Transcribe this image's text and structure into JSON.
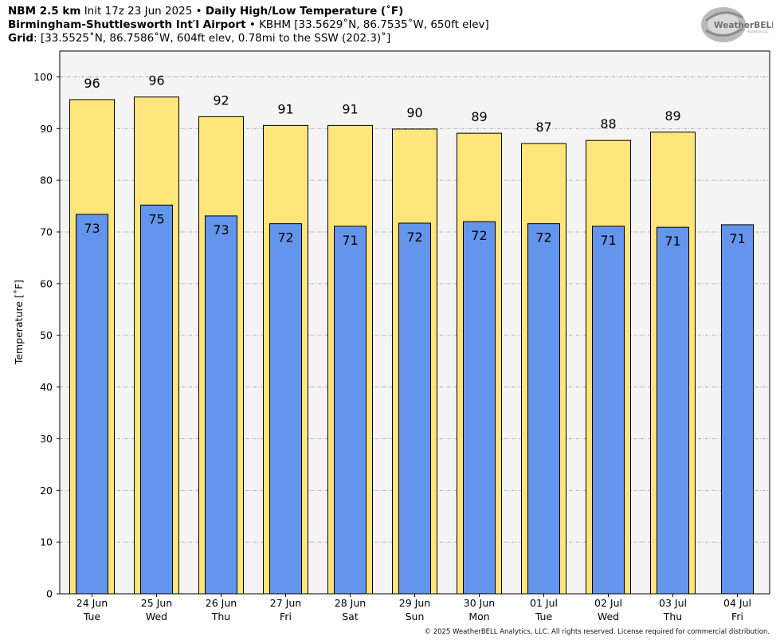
{
  "header": {
    "line1_bold": "NBM 2.5 km",
    "line1_init": "Init 17z 23 Jun 2025",
    "line1_sep": " • ",
    "line1_title": "Daily High/Low Temperature (˚F)",
    "line2_bold": "Birmingham-Shuttlesworth Int′l Airport",
    "line2_sep": " • ",
    "line2_rest": "KBHM [33.5629˚N, 86.7535˚W, 650ft elev]",
    "line3_bold": "Grid",
    "line3_rest": ": [33.5525˚N, 86.7586˚W, 604ft elev, 0.78mi to the SSW (202.3)˚]"
  },
  "logo": {
    "text": "WeatherBELL",
    "subtext": "Analytics LLC"
  },
  "copyright": "© 2025 WeatherBELL Analytics, LLC. All rights reserved. License required for commercial distribution.",
  "chart_data": {
    "type": "bar",
    "ylabel": "Temperature [˚F]",
    "ylim": [
      0,
      105
    ],
    "yticks": [
      0,
      10,
      20,
      30,
      40,
      50,
      60,
      70,
      80,
      90,
      100
    ],
    "grid": true,
    "categories": [
      {
        "date": "24 Jun",
        "day": "Tue"
      },
      {
        "date": "25 Jun",
        "day": "Wed"
      },
      {
        "date": "26 Jun",
        "day": "Thu"
      },
      {
        "date": "27 Jun",
        "day": "Fri"
      },
      {
        "date": "28 Jun",
        "day": "Sat"
      },
      {
        "date": "29 Jun",
        "day": "Sun"
      },
      {
        "date": "30 Jun",
        "day": "Mon"
      },
      {
        "date": "01 Jul",
        "day": "Tue"
      },
      {
        "date": "02 Jul",
        "day": "Wed"
      },
      {
        "date": "03 Jul",
        "day": "Thu"
      },
      {
        "date": "04 Jul",
        "day": "Fri"
      }
    ],
    "series": [
      {
        "key": "high",
        "color": "#FFE57A",
        "values": [
          95.6,
          96.1,
          92.3,
          90.6,
          90.6,
          89.9,
          89.1,
          87.1,
          87.7,
          89.3,
          null
        ],
        "labels": [
          "96",
          "96",
          "92",
          "91",
          "91",
          "90",
          "89",
          "87",
          "88",
          "89",
          null
        ]
      },
      {
        "key": "low",
        "color": "#6495ED",
        "values": [
          73.4,
          75.2,
          73.1,
          71.6,
          71.1,
          71.7,
          72.0,
          71.6,
          71.1,
          70.9,
          71.4
        ],
        "labels": [
          "73",
          "75",
          "73",
          "72",
          "71",
          "72",
          "72",
          "72",
          "71",
          "71",
          "71"
        ]
      }
    ],
    "plot_background": "#F4F4F4"
  }
}
